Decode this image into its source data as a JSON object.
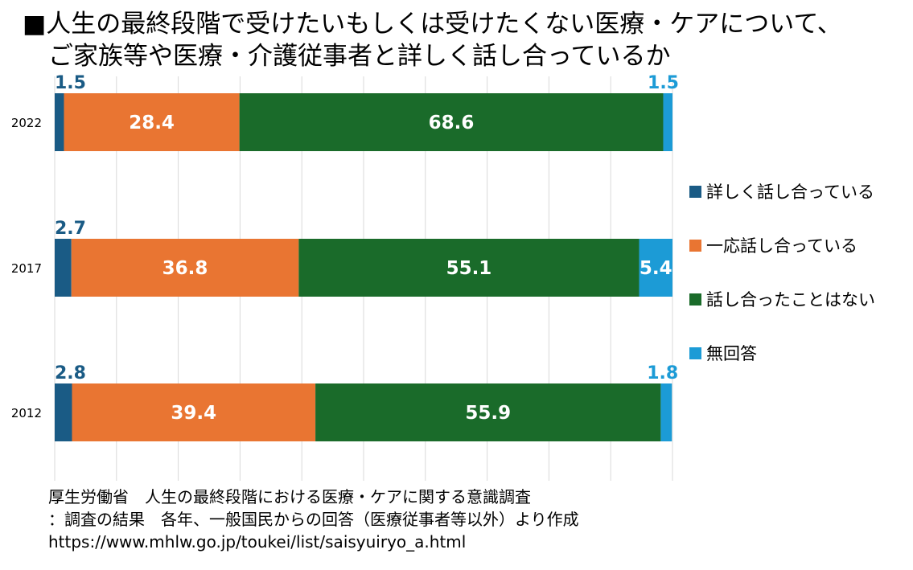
{
  "title": {
    "line1": "■人生の最終段階で受けたいもしくは受けたくない医療・ケアについて、",
    "line2": "ご家族等や医療・介護従事者と詳しく話し合っているか"
  },
  "legend": [
    {
      "label": "詳しく話し合っている",
      "color": "#1a5b85"
    },
    {
      "label": "一応話し合っている",
      "color": "#e97532"
    },
    {
      "label": "話し合ったことはない",
      "color": "#1a6b2a"
    },
    {
      "label": "無回答",
      "color": "#1c9bd6"
    }
  ],
  "source": {
    "line1": "厚生労働省　人生の最終段階における医療・ケアに関する意識調査",
    "line2": "：調査の結果　各年、一般国民からの回答（医療従事者等以外）より作成",
    "line3": "https://www.mhlw.go.jp/toukei/list/saisyuiryo_a.html"
  },
  "chart_data": {
    "type": "bar",
    "orientation": "horizontal",
    "stacked": true,
    "categories": [
      "2022",
      "2017",
      "2012"
    ],
    "series": [
      {
        "name": "詳しく話し合っている",
        "values": [
          1.5,
          2.7,
          2.8
        ],
        "color": "#1a5b85"
      },
      {
        "name": "一応話し合っている",
        "values": [
          28.4,
          36.8,
          39.4
        ],
        "color": "#e97532"
      },
      {
        "name": "話し合ったことはない",
        "values": [
          68.6,
          55.1,
          55.9
        ],
        "color": "#1a6b2a"
      },
      {
        "name": "無回答",
        "values": [
          1.5,
          5.4,
          1.8
        ],
        "color": "#1c9bd6"
      }
    ],
    "xlim": [
      0,
      100
    ],
    "grid": true,
    "legend_position": "right"
  }
}
